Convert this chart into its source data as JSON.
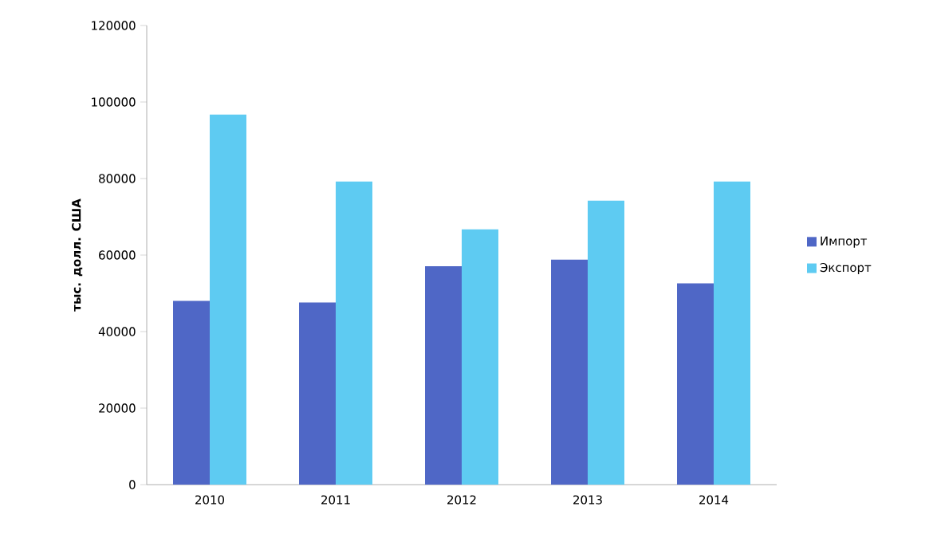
{
  "chart_data": {
    "type": "bar",
    "ylabel": "тыс. долл. США",
    "categories": [
      "2010",
      "2011",
      "2012",
      "2013",
      "2014"
    ],
    "series": [
      {
        "name": "Импорт",
        "color": "#4f67c6",
        "values": [
          48000,
          47600,
          57100,
          58800,
          52600
        ]
      },
      {
        "name": "Экспорт",
        "color": "#5ecbf2",
        "values": [
          96700,
          79200,
          66700,
          74200,
          79200
        ]
      }
    ],
    "ylim": [
      0,
      120000
    ],
    "yticks": [
      0,
      20000,
      40000,
      60000,
      80000,
      100000,
      120000
    ],
    "grid": false,
    "legend": "right"
  }
}
